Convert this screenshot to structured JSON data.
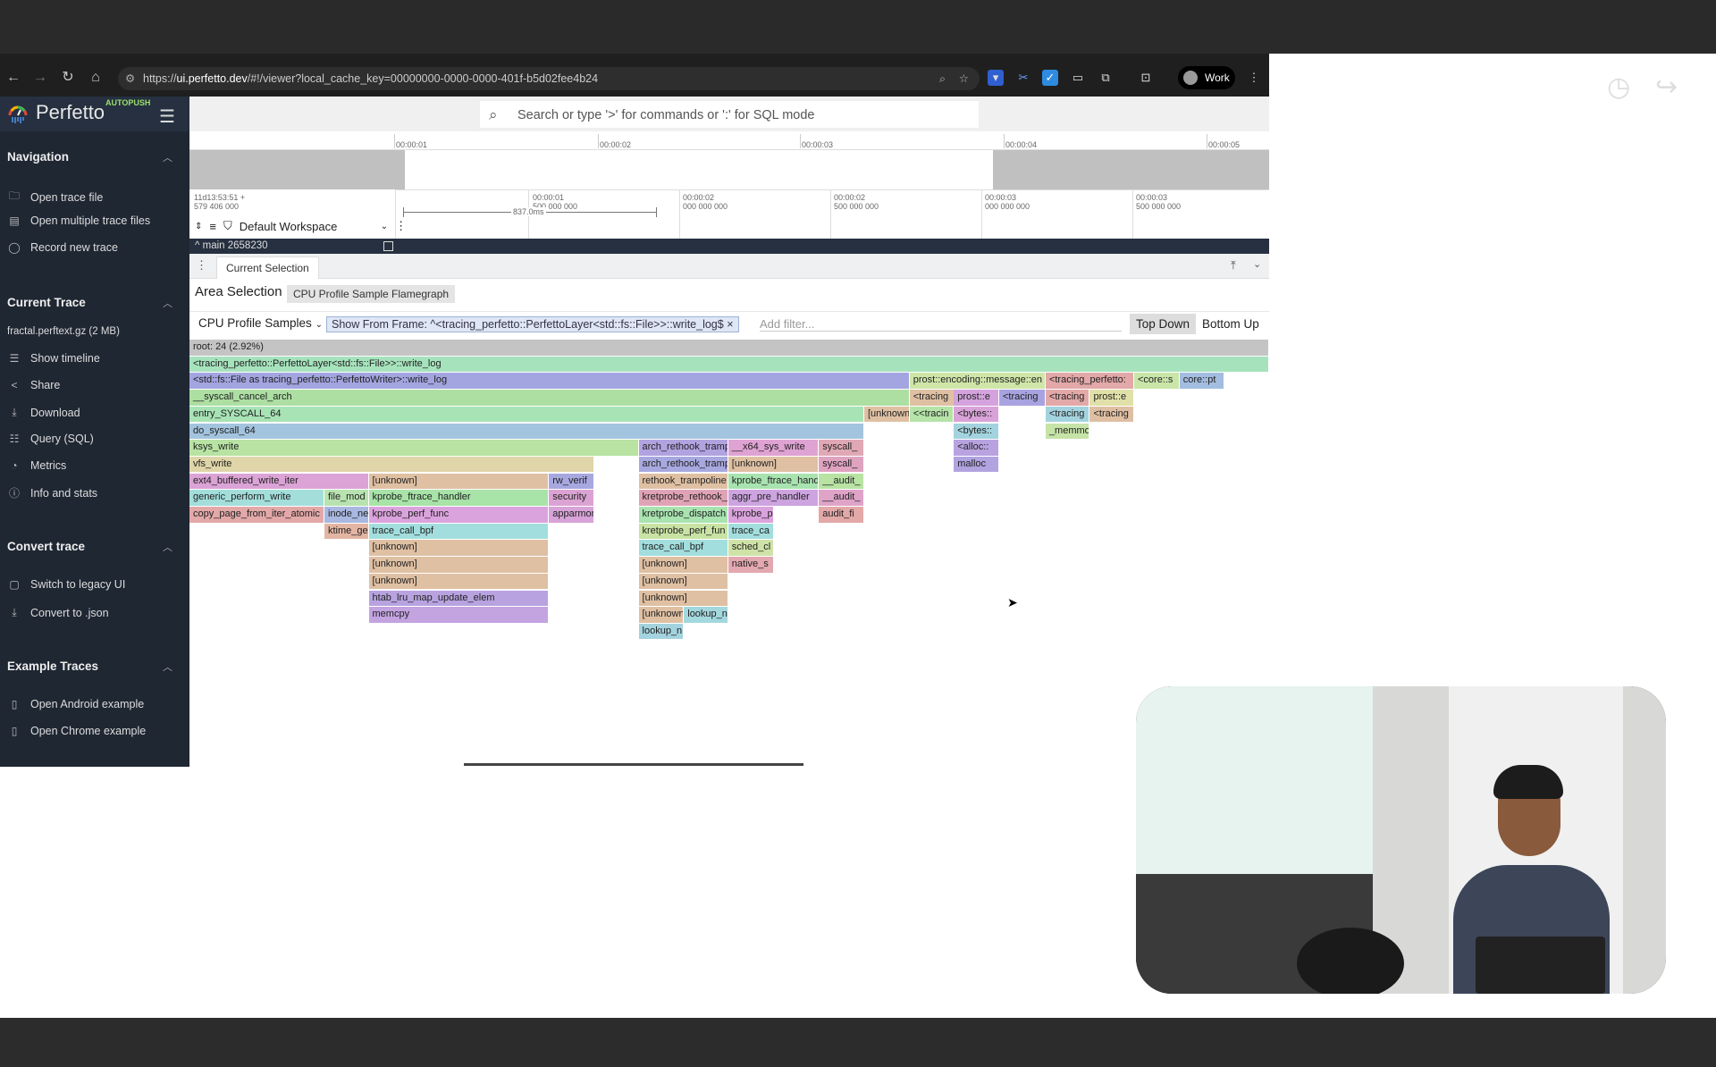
{
  "browser": {
    "url_prefix": "https://",
    "url_host": "ui.perfetto.dev",
    "url_rest": "/#!/viewer?local_cache_key=00000000-0000-0000-401f-b5d02fee4b24",
    "profile": "Work",
    "icons": [
      "back-icon",
      "forward-icon",
      "reload-icon",
      "home-icon",
      "zoom-icon",
      "star-icon",
      "bitwarden-icon",
      "scissors-icon",
      "todo-icon",
      "cast-icon",
      "extensions-icon",
      "tab-search-icon",
      "menu-icon"
    ]
  },
  "app": {
    "name": "Perfetto",
    "badge": "AUTOPUSH",
    "search_placeholder": "Search or type '>' for commands or ':' for SQL mode"
  },
  "sidebar": {
    "sections": [
      {
        "title": "Navigation",
        "items": [
          {
            "label": "Open trace file",
            "icon": "folder-open-icon"
          },
          {
            "label": "Open multiple trace files",
            "icon": "files-icon"
          },
          {
            "label": "Record new trace",
            "icon": "record-icon"
          }
        ]
      },
      {
        "title": "Current Trace",
        "subtitle": "fractal.perftext.gz (2 MB)",
        "items": [
          {
            "label": "Show timeline",
            "icon": "timeline-icon"
          },
          {
            "label": "Share",
            "icon": "share-icon"
          },
          {
            "label": "Download",
            "icon": "download-icon"
          },
          {
            "label": "Query (SQL)",
            "icon": "database-icon"
          },
          {
            "label": "Metrics",
            "icon": "metrics-icon"
          },
          {
            "label": "Info and stats",
            "icon": "info-icon"
          }
        ]
      },
      {
        "title": "Convert trace",
        "items": [
          {
            "label": "Switch to legacy UI",
            "icon": "legacy-icon"
          },
          {
            "label": "Convert to .json",
            "icon": "download-icon"
          }
        ]
      },
      {
        "title": "Example Traces",
        "items": [
          {
            "label": "Open Android example",
            "icon": "document-icon"
          },
          {
            "label": "Open Chrome example",
            "icon": "document-icon"
          }
        ]
      }
    ]
  },
  "timeline": {
    "ruler_ticks": [
      "00:00:01",
      "00:00:02",
      "00:00:03",
      "00:00:04",
      "00:00:05"
    ],
    "axis_labels": [
      [
        "11d13:53:51 +",
        "579 406 000"
      ],
      [
        "00:00:01",
        "500 000 000"
      ],
      [
        "00:00:02",
        "000 000 000"
      ],
      [
        "00:00:02",
        "500 000 000"
      ],
      [
        "00:00:03",
        "000 000 000"
      ],
      [
        "00:00:03",
        "500 000 000"
      ]
    ],
    "measurement": "837.0ms",
    "workspace": "Default Workspace",
    "track": "main 2658230"
  },
  "details": {
    "tab": "Current Selection",
    "title": "Area Selection",
    "chip": "CPU Profile Sample Flamegraph",
    "metric": "CPU Profile Samples",
    "filter_chip": "Show From Frame: ^<tracing_perfetto::PerfettoLayer<std::fs::File>>::write_log$",
    "add_filter_placeholder": "Add filter...",
    "top_down": "Top Down",
    "bottom_up": "Bottom Up"
  },
  "flamegraph": {
    "frames": [
      {
        "name": "root: 24 (2.92%)",
        "depth": 0,
        "start_pct": 0,
        "pct": 100,
        "color": "#c4c4c4"
      },
      {
        "name": "<tracing_perfetto::PerfettoLayer<std::fs::File>>::write_log",
        "depth": 1,
        "start_pct": 0,
        "pct": 100,
        "color": "#a6e3bd"
      },
      {
        "name": "<std::fs::File as tracing_perfetto::PerfettoWriter>::write_log",
        "depth": 2,
        "start_pct": 0,
        "pct": 66.7,
        "color": "#a3a5e0"
      },
      {
        "name": "prost::encoding::message::en",
        "depth": 2,
        "start_pct": 66.7,
        "pct": 12.6,
        "color": "#cfe6a8"
      },
      {
        "name": "<tracing_perfetto:",
        "depth": 2,
        "start_pct": 79.3,
        "pct": 8.2,
        "color": "#e3a8a8"
      },
      {
        "name": "<core::s",
        "depth": 2,
        "start_pct": 87.5,
        "pct": 4.2,
        "color": "#c9e6a8"
      },
      {
        "name": "core::pt",
        "depth": 2,
        "start_pct": 91.7,
        "pct": 4.2,
        "color": "#a3bde0"
      },
      {
        "name": "__syscall_cancel_arch",
        "depth": 3,
        "start_pct": 0,
        "pct": 66.7,
        "color": "#addfa3"
      },
      {
        "name": "<tracing",
        "depth": 3,
        "start_pct": 66.7,
        "pct": 4.2,
        "color": "#dfc0a3"
      },
      {
        "name": "prost::e",
        "depth": 3,
        "start_pct": 70.8,
        "pct": 4.2,
        "color": "#d4a3dd"
      },
      {
        "name": "<tracing",
        "depth": 3,
        "start_pct": 75.0,
        "pct": 4.3,
        "color": "#a8a3e0"
      },
      {
        "name": "<tracing",
        "depth": 3,
        "start_pct": 79.3,
        "pct": 4.1,
        "color": "#e3a8a8"
      },
      {
        "name": "prost::e",
        "depth": 3,
        "start_pct": 83.4,
        "pct": 4.1,
        "color": "#e0e0a8"
      },
      {
        "name": "entry_SYSCALL_64",
        "depth": 4,
        "start_pct": 0,
        "pct": 62.5,
        "color": "#a8e3b5"
      },
      {
        "name": "[unknown",
        "depth": 4,
        "start_pct": 62.5,
        "pct": 4.2,
        "color": "#dfc0a3"
      },
      {
        "name": "<<tracin",
        "depth": 4,
        "start_pct": 66.7,
        "pct": 4.1,
        "color": "#b5e3a8"
      },
      {
        "name": "<bytes::",
        "depth": 4,
        "start_pct": 70.8,
        "pct": 4.2,
        "color": "#d9a3d9"
      },
      {
        "name": "<tracing",
        "depth": 4,
        "start_pct": 79.3,
        "pct": 4.1,
        "color": "#a3d3de"
      },
      {
        "name": "<tracing",
        "depth": 4,
        "start_pct": 83.4,
        "pct": 4.1,
        "color": "#dfbfa3"
      },
      {
        "name": "do_syscall_64",
        "depth": 5,
        "start_pct": 0,
        "pct": 62.5,
        "color": "#a3c4de"
      },
      {
        "name": "<bytes::",
        "depth": 5,
        "start_pct": 70.8,
        "pct": 4.2,
        "color": "#a3d3de"
      },
      {
        "name": "_memmov",
        "depth": 5,
        "start_pct": 79.3,
        "pct": 4.1,
        "color": "#c6e3a8"
      },
      {
        "name": "ksys_write",
        "depth": 6,
        "start_pct": 0,
        "pct": 41.6,
        "color": "#b8e3a3"
      },
      {
        "name": "arch_rethook_tramp",
        "depth": 6,
        "start_pct": 41.6,
        "pct": 8.3,
        "color": "#b0a3e0"
      },
      {
        "name": "__x64_sys_write",
        "depth": 6,
        "start_pct": 49.9,
        "pct": 8.4,
        "color": "#dfa3d3"
      },
      {
        "name": "syscall_",
        "depth": 6,
        "start_pct": 58.3,
        "pct": 4.2,
        "color": "#e0a8b5"
      },
      {
        "name": "<alloc::",
        "depth": 6,
        "start_pct": 70.8,
        "pct": 4.2,
        "color": "#b8a3e0"
      },
      {
        "name": "vfs_write",
        "depth": 7,
        "start_pct": 0,
        "pct": 37.5,
        "color": "#dfd5a8"
      },
      {
        "name": "arch_rethook_tramp",
        "depth": 7,
        "start_pct": 41.6,
        "pct": 8.3,
        "color": "#a8a8e0"
      },
      {
        "name": "[unknown]",
        "depth": 7,
        "start_pct": 49.9,
        "pct": 8.4,
        "color": "#dfc0a3"
      },
      {
        "name": "syscall_",
        "depth": 7,
        "start_pct": 58.3,
        "pct": 4.2,
        "color": "#dfa3c0"
      },
      {
        "name": "malloc",
        "depth": 7,
        "start_pct": 70.8,
        "pct": 4.2,
        "color": "#b0a3e0"
      },
      {
        "name": "ext4_buffered_write_iter",
        "depth": 8,
        "start_pct": 0,
        "pct": 16.6,
        "color": "#dba3d6"
      },
      {
        "name": "[unknown]",
        "depth": 8,
        "start_pct": 16.6,
        "pct": 16.7,
        "color": "#dfc0a3"
      },
      {
        "name": "rw_verif",
        "depth": 8,
        "start_pct": 33.3,
        "pct": 4.2,
        "color": "#a8a8e0"
      },
      {
        "name": "rethook_trampoline",
        "depth": 8,
        "start_pct": 41.6,
        "pct": 8.3,
        "color": "#dfc0a3"
      },
      {
        "name": "kprobe_ftrace_hand",
        "depth": 8,
        "start_pct": 49.9,
        "pct": 8.4,
        "color": "#a8e3b0"
      },
      {
        "name": "__audit_",
        "depth": 8,
        "start_pct": 58.3,
        "pct": 4.2,
        "color": "#b8e3a3"
      },
      {
        "name": "generic_perform_write",
        "depth": 9,
        "start_pct": 0,
        "pct": 12.5,
        "color": "#a3dedb"
      },
      {
        "name": "file_mod",
        "depth": 9,
        "start_pct": 12.5,
        "pct": 4.1,
        "color": "#b8e3b0"
      },
      {
        "name": "kprobe_ftrace_handler",
        "depth": 9,
        "start_pct": 16.6,
        "pct": 16.7,
        "color": "#a8e3a8"
      },
      {
        "name": "security",
        "depth": 9,
        "start_pct": 33.3,
        "pct": 4.2,
        "color": "#dba3d3"
      },
      {
        "name": "kretprobe_rethook_",
        "depth": 9,
        "start_pct": 41.6,
        "pct": 8.3,
        "color": "#e0a3b5"
      },
      {
        "name": "aggr_pre_handler",
        "depth": 9,
        "start_pct": 49.9,
        "pct": 8.4,
        "color": "#cda3e0"
      },
      {
        "name": "__audit_",
        "depth": 9,
        "start_pct": 58.3,
        "pct": 4.2,
        "color": "#dfa3c8"
      },
      {
        "name": "copy_page_from_iter_atomic",
        "depth": 10,
        "start_pct": 0,
        "pct": 12.5,
        "color": "#e3a8a8"
      },
      {
        "name": "inode_ne",
        "depth": 10,
        "start_pct": 12.5,
        "pct": 4.1,
        "color": "#a8b8e0"
      },
      {
        "name": "kprobe_perf_func",
        "depth": 10,
        "start_pct": 16.6,
        "pct": 16.7,
        "color": "#dba3dd"
      },
      {
        "name": "apparmor",
        "depth": 10,
        "start_pct": 33.3,
        "pct": 4.2,
        "color": "#d8a3d8"
      },
      {
        "name": "kretprobe_dispatch",
        "depth": 10,
        "start_pct": 41.6,
        "pct": 8.3,
        "color": "#a8e3b0"
      },
      {
        "name": "kprobe_p",
        "depth": 10,
        "start_pct": 49.9,
        "pct": 4.2,
        "color": "#dba3dd"
      },
      {
        "name": "audit_fi",
        "depth": 10,
        "start_pct": 58.3,
        "pct": 4.2,
        "color": "#e3a8a8"
      },
      {
        "name": "ktime_ge",
        "depth": 11,
        "start_pct": 12.5,
        "pct": 4.1,
        "color": "#e3b5a3"
      },
      {
        "name": "trace_call_bpf",
        "depth": 11,
        "start_pct": 16.6,
        "pct": 16.7,
        "color": "#a3dede"
      },
      {
        "name": "kretprobe_perf_fun",
        "depth": 11,
        "start_pct": 41.6,
        "pct": 8.3,
        "color": "#c8e3a3"
      },
      {
        "name": "trace_ca",
        "depth": 11,
        "start_pct": 49.9,
        "pct": 4.2,
        "color": "#a3dede"
      },
      {
        "name": "[unknown]",
        "depth": 12,
        "start_pct": 16.6,
        "pct": 16.7,
        "color": "#dfc0a3"
      },
      {
        "name": "trace_call_bpf",
        "depth": 12,
        "start_pct": 41.6,
        "pct": 8.3,
        "color": "#a3dede"
      },
      {
        "name": "sched_cl",
        "depth": 12,
        "start_pct": 49.9,
        "pct": 4.2,
        "color": "#cfe3a8"
      },
      {
        "name": "[unknown]",
        "depth": 13,
        "start_pct": 16.6,
        "pct": 16.7,
        "color": "#dfc0a3"
      },
      {
        "name": "[unknown]",
        "depth": 13,
        "start_pct": 41.6,
        "pct": 8.3,
        "color": "#dfc0a3"
      },
      {
        "name": "native_s",
        "depth": 13,
        "start_pct": 49.9,
        "pct": 4.2,
        "color": "#e3a8b0"
      },
      {
        "name": "[unknown]",
        "depth": 14,
        "start_pct": 16.6,
        "pct": 16.7,
        "color": "#dfc0a3"
      },
      {
        "name": "[unknown]",
        "depth": 14,
        "start_pct": 41.6,
        "pct": 8.3,
        "color": "#dfc0a3"
      },
      {
        "name": "htab_lru_map_update_elem",
        "depth": 15,
        "start_pct": 16.6,
        "pct": 16.7,
        "color": "#b8a3e0"
      },
      {
        "name": "[unknown]",
        "depth": 15,
        "start_pct": 41.6,
        "pct": 8.3,
        "color": "#dfc0a3"
      },
      {
        "name": "memcpy",
        "depth": 16,
        "start_pct": 16.6,
        "pct": 16.7,
        "color": "#c3a3e0"
      },
      {
        "name": "[unknown",
        "depth": 16,
        "start_pct": 41.6,
        "pct": 4.2,
        "color": "#dfc0a3"
      },
      {
        "name": "lookup_n",
        "depth": 16,
        "start_pct": 45.8,
        "pct": 4.1,
        "color": "#a3d8de"
      },
      {
        "name": "lookup_n",
        "depth": 17,
        "start_pct": 41.6,
        "pct": 4.2,
        "color": "#a3d3de"
      }
    ]
  }
}
